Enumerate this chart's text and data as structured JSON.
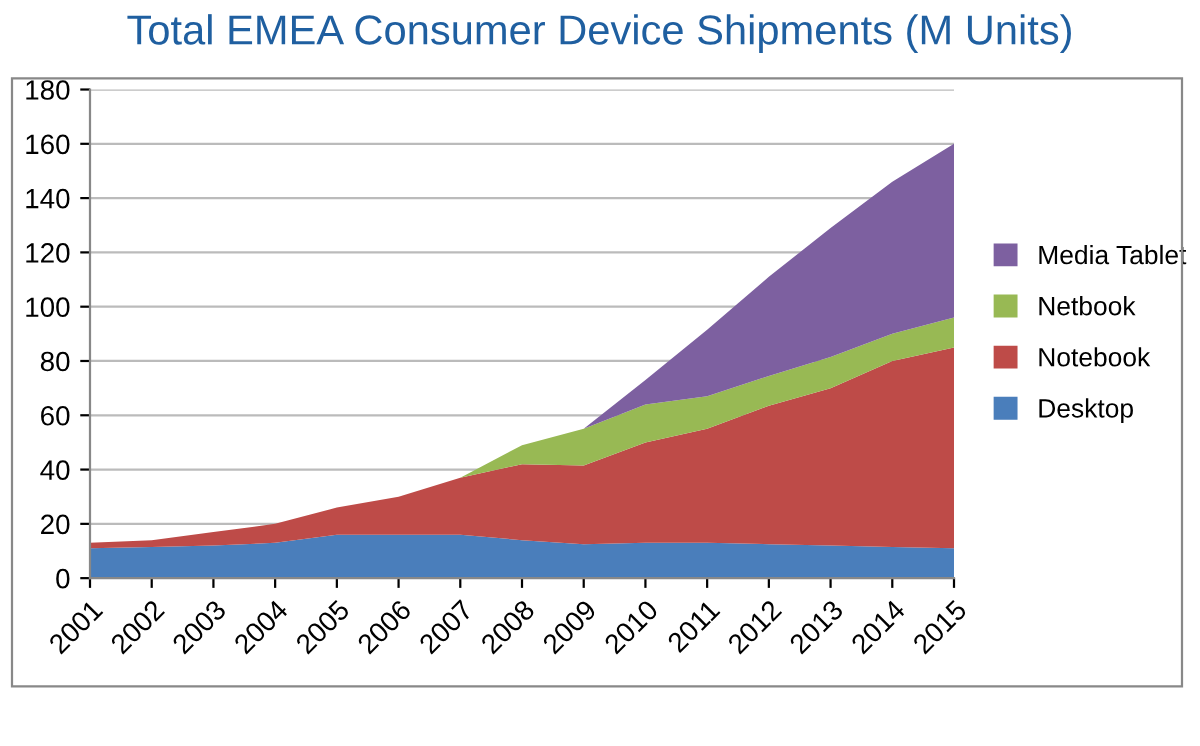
{
  "chart_data": {
    "type": "area",
    "stacked": true,
    "title": "Total EMEA Consumer Device Shipments (M Units)",
    "categories": [
      "2001",
      "2002",
      "2003",
      "2004",
      "2005",
      "2006",
      "2007",
      "2008",
      "2009",
      "2010",
      "2011",
      "2012",
      "2013",
      "2014",
      "2015"
    ],
    "series": [
      {
        "name": "Desktop",
        "color": "#4a7ebb",
        "values": [
          11,
          11.5,
          12,
          13,
          16,
          16,
          16,
          14,
          12.5,
          13,
          13,
          12.5,
          12,
          11.5,
          11
        ]
      },
      {
        "name": "Notebook",
        "color": "#be4b48",
        "values": [
          2,
          2.5,
          5,
          7,
          10,
          14,
          21,
          28,
          29,
          37,
          42,
          51,
          58,
          68.5,
          74
        ]
      },
      {
        "name": "Netbook",
        "color": "#98b954",
        "values": [
          0,
          0,
          0,
          0,
          0,
          0,
          0,
          7,
          13.5,
          14,
          12,
          11,
          11.5,
          10,
          11
        ]
      },
      {
        "name": "Media Tablet",
        "color": "#7d60a0",
        "values": [
          0,
          0,
          0,
          0,
          0,
          0,
          0,
          0,
          0,
          9,
          24.5,
          36.5,
          47.5,
          56,
          64
        ]
      }
    ],
    "ylim": [
      0,
      180
    ],
    "yticks": [
      0,
      20,
      40,
      60,
      80,
      100,
      120,
      140,
      160,
      180
    ],
    "grid": "y",
    "legend": "right"
  }
}
